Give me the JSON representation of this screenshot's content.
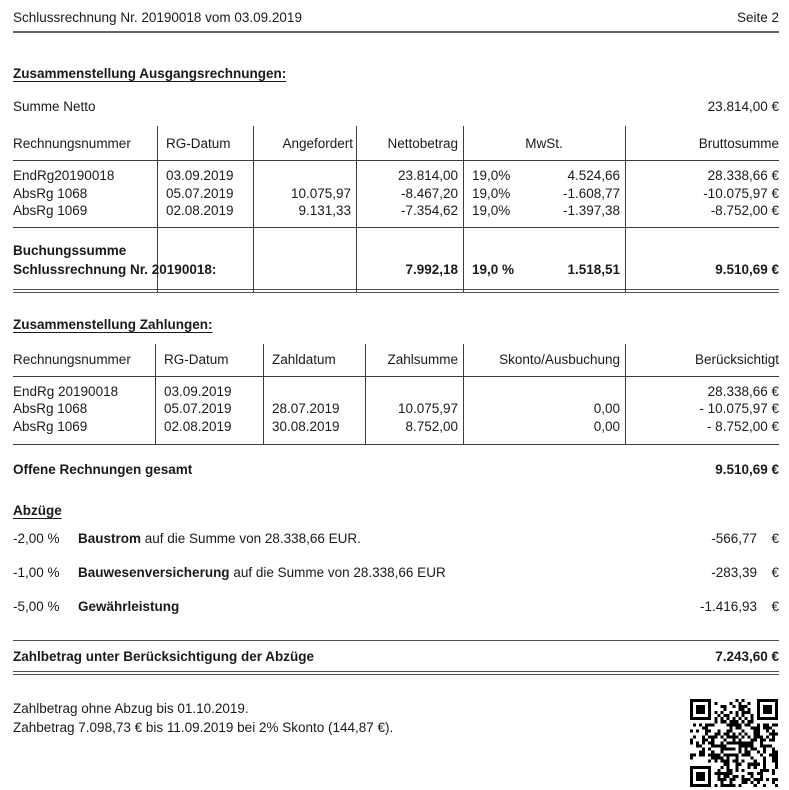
{
  "page": {
    "header_title": "Schlussrechnung Nr. 20190018 vom 03.09.2019",
    "page_label": "Seite 2"
  },
  "section_ausgang": {
    "title": "Zusammenstellung Ausgangsrechnungen:",
    "summe_netto_label": "Summe Netto",
    "summe_netto_value": "23.814,00 €",
    "columns": [
      "Rechnungsnummer",
      "RG-Datum",
      "Angefordert",
      "Nettobetrag",
      "MwSt.",
      "Bruttosumme"
    ],
    "rows": [
      [
        "EndRg20190018",
        "03.09.2019",
        "",
        "23.814,00",
        "19,0%",
        "4.524,66",
        "28.338,66 €"
      ],
      [
        "AbsRg 1068",
        "05.07.2019",
        "10.075,97",
        "-8.467,20",
        "19,0%",
        "-1.608,77",
        "-10.075,97 €"
      ],
      [
        "AbsRg 1069",
        "02.08.2019",
        "9.131,33",
        "-7.354,62",
        "19,0%",
        "-1.397,38",
        "-8.752,00 €"
      ]
    ],
    "summary": {
      "line1": "Buchungssumme",
      "line2": "Schlussrechnung Nr. 20190018:",
      "netto": "7.992,18",
      "mwst_pct": "19,0 %",
      "mwst": "1.518,51",
      "brutto": "9.510,69 €"
    }
  },
  "section_zahlungen": {
    "title": "Zusammenstellung Zahlungen:",
    "columns": [
      "Rechnungsnummer",
      "RG-Datum",
      "Zahldatum",
      "Zahlsumme",
      "Skonto/Ausbuchung",
      "Berücksichtigt"
    ],
    "rows": [
      [
        "EndRg 20190018",
        "03.09.2019",
        "",
        "",
        "",
        "28.338,66 €"
      ],
      [
        "AbsRg 1068",
        "05.07.2019",
        "28.07.2019",
        "10.075,97",
        "0,00",
        "- 10.075,97 €"
      ],
      [
        "AbsRg 1069",
        "02.08.2019",
        "30.08.2019",
        "8.752,00",
        "0,00",
        "- 8.752,00 €"
      ]
    ],
    "offene_label": "Offene Rechnungen gesamt",
    "offene_value": "9.510,69 €"
  },
  "abzuege": {
    "title": "Abzüge",
    "rows": [
      {
        "pct": "-2,00 %",
        "name": "Baustrom",
        "desc": " auf die Summe von 28.338,66 EUR.",
        "amount": "-566,77",
        "currency": "€"
      },
      {
        "pct": "-1,00 %",
        "name": "Bauwesenversicherung",
        "desc": " auf die Summe von 28.338,66 EUR",
        "amount": "-283,39",
        "currency": "€"
      },
      {
        "pct": "-5,00 %",
        "name": "Gewährleistung",
        "desc": "",
        "amount": "-1.416,93",
        "currency": "€"
      }
    ]
  },
  "zahlbetrag": {
    "label": "Zahlbetrag unter Berücksichtigung der Abzüge",
    "value": "7.243,60 €"
  },
  "footer": {
    "line1": "Zahlbetrag ohne Abzug bis 01.10.2019.",
    "line2": "Zahbetrag 7.098,73 € bis 11.09.2019 bei 2% Skonto (144,87 €)."
  },
  "icons": {
    "qr": "qr-code"
  },
  "colors": {
    "text": "#1a1a1a",
    "rule": "#515151",
    "table_line": "#3d3d3d"
  }
}
